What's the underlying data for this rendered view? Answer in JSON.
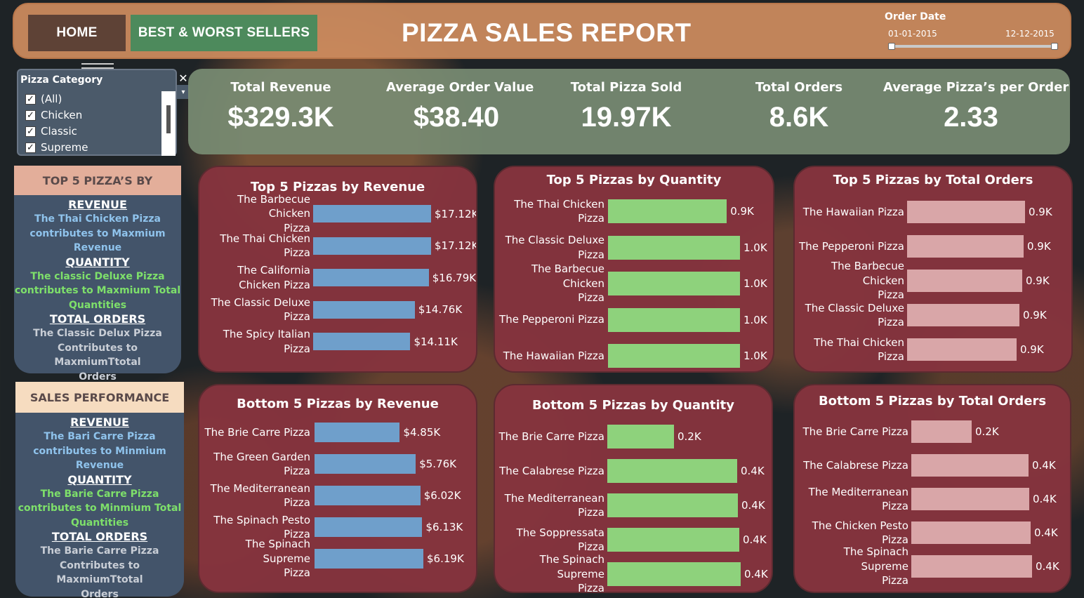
{
  "nav": {
    "home": "HOME",
    "best_worst": "BEST & WORST SELLERS"
  },
  "header": {
    "title": "PIZZA SALES REPORT",
    "date_filter": {
      "title": "Order Date",
      "start": "01-01-2015",
      "end": "12-12-2015"
    }
  },
  "filter": {
    "title": "Pizza Category",
    "items": [
      "(All)",
      "Chicken",
      "Classic",
      "Supreme"
    ],
    "checked_mark": "✓",
    "close": "✕",
    "dropdown": "▾"
  },
  "kpis": [
    {
      "label": "Total Revenue",
      "value": "$329.3K"
    },
    {
      "label": "Average Order Value",
      "value": "$38.40"
    },
    {
      "label": "Total Pizza Sold",
      "value": "19.97K"
    },
    {
      "label": "Total Orders",
      "value": "8.6K"
    },
    {
      "label": "Average Pizza’s per Order",
      "value": "2.33"
    }
  ],
  "top_insights": {
    "heading": "TOP 5 PIZZA’S BY",
    "revenue_h": "REVENUE",
    "revenue_t": [
      "The Thai Chicken Pizza",
      "contributes to Maxmium",
      "Revenue"
    ],
    "quantity_h": "QUANTITY",
    "quantity_t": [
      "The classic Deluxe Pizza",
      "contributes to Maxmium Total",
      "Quantities"
    ],
    "orders_h": "TOTAL ORDERS",
    "orders_t": [
      "The Classic Delux Pizza",
      "Contributes to MaxmiumTtotal",
      "Orders"
    ]
  },
  "bottom_insights": {
    "heading": "SALES PERFORMANCE",
    "revenue_h": "REVENUE",
    "revenue_t": [
      "The Bari Carre Pizza",
      "contributes to Minmium",
      "Revenue"
    ],
    "quantity_h": "QUANTITY",
    "quantity_t": [
      "The Barie Carre Pizza",
      "contributes to Minmium Total",
      "Quantities"
    ],
    "orders_h": "TOTAL ORDERS",
    "orders_t": [
      "The Barie Carre Pizza",
      "Contributes to MaxmiumTtotal",
      "Orders"
    ]
  },
  "colors": {
    "revenue_bar": "#6f9fcb",
    "quantity_bar": "#8ed27c",
    "orders_bar": "#d9a6a8"
  },
  "chart_data": [
    {
      "id": "top-revenue",
      "type": "bar",
      "title": "Top 5 Pizzas by Revenue",
      "categories": [
        [
          "The Barbecue Chicken",
          "Pizza"
        ],
        [
          "The Thai Chicken",
          "Pizza"
        ],
        [
          "The California",
          "Chicken Pizza"
        ],
        [
          "The Classic Deluxe",
          "Pizza"
        ],
        [
          "The Spicy Italian",
          "Pizza"
        ]
      ],
      "values": [
        17.12,
        17.12,
        16.79,
        14.76,
        14.11
      ],
      "labels": [
        "$17.12K",
        "$17.12K",
        "$16.79K",
        "$14.76K",
        "$14.11K"
      ],
      "unit": "K$"
    },
    {
      "id": "top-quantity",
      "type": "bar",
      "title": "Top 5 Pizzas by Quantity",
      "categories": [
        [
          "The Thai Chicken",
          "Pizza"
        ],
        [
          "The Classic Deluxe",
          "Pizza"
        ],
        [
          "The Barbecue Chicken",
          "Pizza"
        ],
        [
          "The Pepperoni Pizza"
        ],
        [
          "The Hawaiian Pizza"
        ]
      ],
      "values": [
        0.9,
        1.0,
        1.0,
        1.0,
        1.0
      ],
      "labels": [
        "0.9K",
        "1.0K",
        "1.0K",
        "1.0K",
        "1.0K"
      ]
    },
    {
      "id": "top-orders",
      "type": "bar",
      "title": "Top 5 Pizzas by Total Orders",
      "categories": [
        [
          "The Hawaiian Pizza"
        ],
        [
          "The Pepperoni Pizza"
        ],
        [
          "The Barbecue Chicken",
          "Pizza"
        ],
        [
          "The Classic Deluxe",
          "Pizza"
        ],
        [
          "The Thai Chicken",
          "Pizza"
        ]
      ],
      "values": [
        0.9,
        0.9,
        0.9,
        0.9,
        0.9
      ],
      "labels": [
        "0.9K",
        "0.9K",
        "0.9K",
        "0.9K",
        "0.9K"
      ]
    },
    {
      "id": "bottom-revenue",
      "type": "bar",
      "title": "Bottom 5 Pizzas by Revenue",
      "categories": [
        [
          "The Brie Carre Pizza"
        ],
        [
          "The Green Garden",
          "Pizza"
        ],
        [
          "The Mediterranean",
          "Pizza"
        ],
        [
          "The Spinach Pesto",
          "Pizza"
        ],
        [
          "The Spinach Supreme",
          "Pizza"
        ]
      ],
      "values": [
        4.85,
        5.76,
        6.02,
        6.13,
        6.19
      ],
      "labels": [
        "$4.85K",
        "$5.76K",
        "$6.02K",
        "$6.13K",
        "$6.19K"
      ]
    },
    {
      "id": "bottom-quantity",
      "type": "bar",
      "title": "Bottom 5 Pizzas by Quantity",
      "categories": [
        [
          "The Brie Carre Pizza"
        ],
        [
          "The Calabrese Pizza"
        ],
        [
          "The Mediterranean",
          "Pizza"
        ],
        [
          "The Soppressata",
          "Pizza"
        ],
        [
          "The Spinach Supreme",
          "Pizza"
        ]
      ],
      "values": [
        0.2,
        0.4,
        0.4,
        0.4,
        0.4
      ],
      "labels": [
        "0.2K",
        "0.4K",
        "0.4K",
        "0.4K",
        "0.4K"
      ]
    },
    {
      "id": "bottom-orders",
      "type": "bar",
      "title": "Bottom 5 Pizzas by Total Orders",
      "categories": [
        [
          "The Brie Carre Pizza"
        ],
        [
          "The Calabrese Pizza"
        ],
        [
          "The Mediterranean",
          "Pizza"
        ],
        [
          "The Chicken Pesto",
          "Pizza"
        ],
        [
          "The Spinach Supreme",
          "Pizza"
        ]
      ],
      "values": [
        0.2,
        0.4,
        0.4,
        0.4,
        0.4
      ],
      "labels": [
        "0.2K",
        "0.4K",
        "0.4K",
        "0.4K",
        "0.4K"
      ]
    }
  ]
}
